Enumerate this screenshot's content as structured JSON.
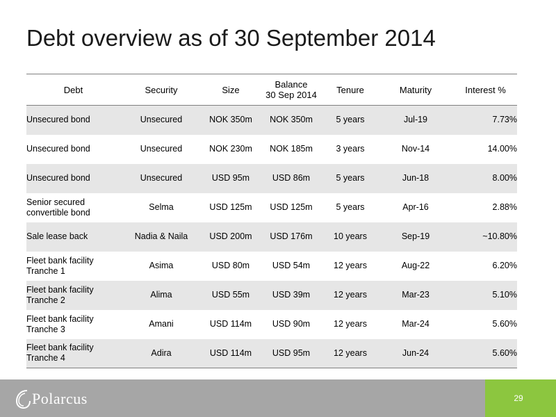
{
  "title": "Debt overview as of 30 September 2014",
  "table": {
    "headers": {
      "debt": "Debt",
      "security": "Security",
      "size": "Size",
      "balance_line1": "Balance",
      "balance_line2": "30 Sep 2014",
      "tenure": "Tenure",
      "maturity": "Maturity",
      "interest": "Interest %"
    },
    "rows": [
      {
        "debt1": "Unsecured bond",
        "debt2": "",
        "security": "Unsecured",
        "size": "NOK 350m",
        "balance": "NOK 350m",
        "tenure": "5 years",
        "maturity": "Jul-19",
        "interest": "7.73%"
      },
      {
        "debt1": "Unsecured bond",
        "debt2": "",
        "security": "Unsecured",
        "size": "NOK 230m",
        "balance": "NOK 185m",
        "tenure": "3 years",
        "maturity": "Nov-14",
        "interest": "14.00%"
      },
      {
        "debt1": "Unsecured bond",
        "debt2": "",
        "security": "Unsecured",
        "size": "USD 95m",
        "balance": "USD 86m",
        "tenure": "5 years",
        "maturity": "Jun-18",
        "interest": "8.00%"
      },
      {
        "debt1": "Senior secured",
        "debt2": "convertible bond",
        "security": "Selma",
        "size": "USD 125m",
        "balance": "USD 125m",
        "tenure": "5 years",
        "maturity": "Apr-16",
        "interest": "2.88%"
      },
      {
        "debt1": "Sale lease back",
        "debt2": "",
        "security": "Nadia & Naila",
        "size": "USD 200m",
        "balance": "USD 176m",
        "tenure": "10 years",
        "maturity": "Sep-19",
        "interest": "~10.80%"
      },
      {
        "debt1": "Fleet bank facility",
        "debt2": "Tranche 1",
        "security": "Asima",
        "size": "USD 80m",
        "balance": "USD 54m",
        "tenure": "12 years",
        "maturity": "Aug-22",
        "interest": "6.20%"
      },
      {
        "debt1": "Fleet bank facility",
        "debt2": "Tranche 2",
        "security": "Alima",
        "size": "USD 55m",
        "balance": "USD 39m",
        "tenure": "12 years",
        "maturity": "Mar-23",
        "interest": "5.10%"
      },
      {
        "debt1": "Fleet bank facility",
        "debt2": "Tranche 3",
        "security": "Amani",
        "size": "USD 114m",
        "balance": "USD 90m",
        "tenure": "12 years",
        "maturity": "Mar-24",
        "interest": "5.60%"
      },
      {
        "debt1": "Fleet bank facility",
        "debt2": "Tranche 4",
        "security": "Adira",
        "size": "USD 114m",
        "balance": "USD 95m",
        "tenure": "12 years",
        "maturity": "Jun-24",
        "interest": "5.60%"
      }
    ]
  },
  "footer": {
    "logo_text": "Polarcus",
    "page_number": "29",
    "accent_color": "#8cc63f",
    "bar_color": "#a6a6a6"
  }
}
